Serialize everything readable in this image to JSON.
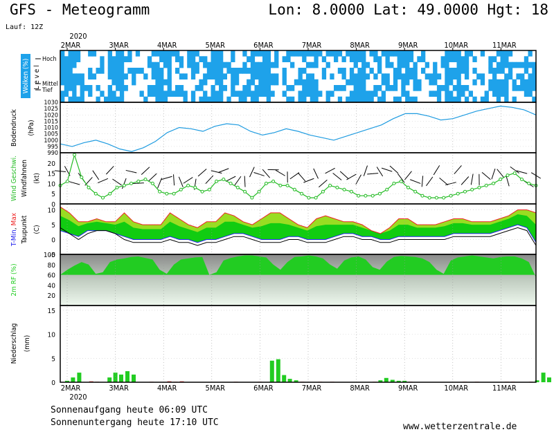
{
  "header": {
    "title": "GFS - Meteogramm",
    "coords": "Lon: 8.0000  Lat: 49.0000  Hgt: 18",
    "run": "Lauf: 12Z"
  },
  "footer": {
    "sunrise": "Sonnenaufgang heute 06:09 UTC",
    "sunset": "Sonnenuntergang heute 17:10 UTC",
    "site": "www.wetterzentrale.de"
  },
  "colors": {
    "cloud": "#1ea2ea",
    "pressure": "#1e9be0",
    "wind_green": "#22bb22",
    "tmin": "#2222ee",
    "tmax": "#ee2222",
    "temp_fill_light": "#99dd22",
    "temp_fill_dark": "#11cc11",
    "rh_green": "#22cc22",
    "precip": "#22cc22"
  },
  "chart_data": [
    {
      "type": "heatmap",
      "panel": "clouds",
      "ylabel": "Wolken (%)",
      "ylabel2": "L e v e l",
      "levels": [
        "Hoch",
        "Mittel",
        "Tief"
      ],
      "x": [
        "2MAR",
        "3MAR",
        "4MAR",
        "5MAR",
        "6MAR",
        "7MAR",
        "8MAR",
        "9MAR",
        "10MAR",
        "11MAR"
      ],
      "year": "2020"
    },
    {
      "type": "line",
      "panel": "pressure",
      "ylabel": "Bodendruck",
      "unit": "(hPa)",
      "yticks": [
        990,
        995,
        1000,
        1005,
        1010,
        1015,
        1020,
        1025,
        1030
      ],
      "ylim": [
        990,
        1030
      ],
      "x_days": [
        0,
        0.25,
        0.5,
        0.75,
        1,
        1.25,
        1.5,
        1.75,
        2,
        2.25,
        2.5,
        2.75,
        3,
        3.25,
        3.5,
        3.75,
        4,
        4.25,
        4.5,
        4.75,
        5,
        5.25,
        5.5,
        5.75,
        6,
        6.25,
        6.5,
        6.75,
        7,
        7.25,
        7.5,
        7.75,
        8,
        8.25,
        8.5,
        8.75,
        9,
        9.25,
        9.5,
        9.75,
        10
      ],
      "values": [
        997,
        995,
        998,
        1000,
        997,
        993,
        991,
        994,
        999,
        1006,
        1010,
        1009,
        1007,
        1011,
        1013,
        1012,
        1007,
        1004,
        1006,
        1009,
        1007,
        1004,
        1002,
        1000,
        1003,
        1006,
        1009,
        1012,
        1017,
        1021,
        1021,
        1019,
        1016,
        1017,
        1020,
        1023,
        1025,
        1027,
        1026,
        1024,
        1020
      ]
    },
    {
      "type": "line",
      "panel": "wind",
      "ylabel": "Wind Geschwi.",
      "ylabel2": "Windfahnen",
      "unit": "(kt)",
      "yticks": [
        0,
        5,
        10,
        15,
        20
      ],
      "ylim": [
        0,
        25
      ],
      "values": [
        9,
        11,
        24,
        13,
        8,
        5,
        3,
        5,
        8,
        9,
        10,
        11,
        12,
        10,
        6,
        5,
        5,
        7,
        9,
        8,
        6,
        7,
        11,
        12,
        10,
        8,
        6,
        3,
        6,
        10,
        11,
        9,
        9,
        7,
        5,
        3,
        3,
        6,
        9,
        8,
        7,
        6,
        4,
        4,
        4,
        5,
        7,
        10,
        11,
        8,
        6,
        4,
        3,
        3,
        3,
        4,
        5,
        6,
        7,
        8,
        9,
        10,
        12,
        14,
        15,
        12,
        10,
        9
      ]
    },
    {
      "type": "area",
      "panel": "temperature",
      "ylabel": "T-Min, Max",
      "ylabel2": "Taupunkt",
      "unit": "(C)",
      "yticks": [
        -5,
        0,
        5,
        10
      ],
      "ylim": [
        -5,
        12
      ],
      "tmax": [
        11,
        9,
        6,
        6,
        7,
        6,
        6,
        9,
        6,
        5,
        5,
        5,
        9,
        7,
        5,
        4,
        6,
        6,
        9,
        8,
        6,
        5,
        7,
        9,
        9,
        7,
        5,
        4,
        7,
        8,
        7,
        6,
        6,
        5,
        3,
        2,
        4,
        7,
        7,
        5,
        5,
        5,
        6,
        7,
        7,
        6,
        6,
        6,
        7,
        8,
        10,
        10,
        9
      ],
      "tmin": [
        3,
        2,
        1,
        3,
        3,
        3,
        2,
        1,
        0,
        0,
        0,
        0,
        1,
        0,
        0,
        -1,
        0,
        0,
        1,
        2,
        2,
        1,
        0,
        0,
        0,
        1,
        1,
        0,
        0,
        0,
        1,
        2,
        2,
        1,
        1,
        0,
        0,
        1,
        1,
        1,
        1,
        1,
        1,
        2,
        2,
        2,
        2,
        2,
        3,
        4,
        5,
        4,
        -1
      ],
      "dew": [
        4,
        2,
        0,
        2,
        3,
        3,
        2,
        0,
        -1,
        -1,
        -1,
        -1,
        0,
        -1,
        -1,
        -2,
        -1,
        -1,
        0,
        1,
        1,
        0,
        -1,
        -1,
        -1,
        0,
        0,
        -1,
        -1,
        -1,
        0,
        1,
        1,
        0,
        0,
        -1,
        -1,
        0,
        0,
        0,
        0,
        0,
        0,
        1,
        1,
        1,
        1,
        1,
        2,
        3,
        4,
        3,
        -2
      ]
    },
    {
      "type": "area",
      "panel": "humidity",
      "ylabel": "2m RF (%)",
      "yticks": [
        20,
        40,
        60,
        80,
        100
      ],
      "ylim": [
        0,
        100
      ],
      "values": [
        60,
        70,
        78,
        85,
        80,
        62,
        65,
        85,
        90,
        92,
        95,
        96,
        93,
        90,
        70,
        62,
        80,
        90,
        92,
        94,
        95,
        60,
        65,
        88,
        93,
        96,
        98,
        98,
        96,
        94,
        80,
        70,
        85,
        95,
        96,
        98,
        96,
        92,
        80,
        72,
        88,
        94,
        96,
        90,
        75,
        70,
        86,
        95,
        97,
        96,
        95,
        92,
        85,
        70,
        62,
        88,
        94,
        96,
        98,
        96,
        94,
        92,
        95,
        96,
        96,
        92,
        85,
        55
      ]
    },
    {
      "type": "bar",
      "panel": "precip",
      "ylabel": "Niederschlag",
      "unit": "(mm)",
      "yticks": [
        0,
        5,
        10,
        15
      ],
      "ylim": [
        0,
        16
      ],
      "bars": [
        [
          0.0,
          0.3
        ],
        [
          0.12,
          1.0
        ],
        [
          0.25,
          2.0
        ],
        [
          0.5,
          0.2
        ],
        [
          0.62,
          0.1
        ],
        [
          0.88,
          1.0
        ],
        [
          1.0,
          2.0
        ],
        [
          1.12,
          1.6
        ],
        [
          1.25,
          2.3
        ],
        [
          1.38,
          1.6
        ],
        [
          1.75,
          0.1
        ],
        [
          2.12,
          0.2
        ],
        [
          2.25,
          0.1
        ],
        [
          2.38,
          0.2
        ],
        [
          3.5,
          0.1
        ],
        [
          4.0,
          0.1
        ],
        [
          4.25,
          4.5
        ],
        [
          4.38,
          4.8
        ],
        [
          4.5,
          1.5
        ],
        [
          4.62,
          0.7
        ],
        [
          4.75,
          0.4
        ],
        [
          4.88,
          0.1
        ],
        [
          5.25,
          0.1
        ],
        [
          5.5,
          0.1
        ],
        [
          6.38,
          0.1
        ],
        [
          6.5,
          0.4
        ],
        [
          6.62,
          0.9
        ],
        [
          6.75,
          0.5
        ],
        [
          6.88,
          0.3
        ],
        [
          7.0,
          0.3
        ],
        [
          7.12,
          0.1
        ],
        [
          8.25,
          0.1
        ],
        [
          8.5,
          0.1
        ],
        [
          9.12,
          0.1
        ],
        [
          9.25,
          0.1
        ],
        [
          9.62,
          0.1
        ],
        [
          9.75,
          0.4
        ],
        [
          9.88,
          2.0
        ],
        [
          10.0,
          1.0
        ],
        [
          10.38,
          0.2
        ],
        [
          10.5,
          2.3
        ],
        [
          10.62,
          1.9
        ]
      ]
    }
  ]
}
